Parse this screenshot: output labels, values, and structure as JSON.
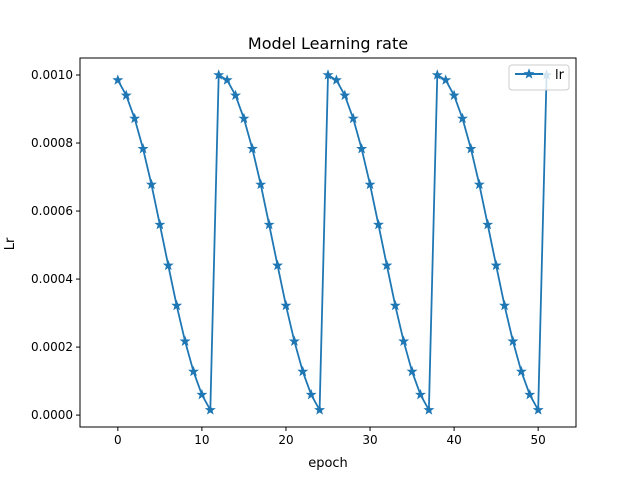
{
  "chart_data": {
    "type": "line",
    "title": "Model Learning rate",
    "xlabel": "epoch",
    "ylabel": "Lr",
    "xlim": [
      -4.5,
      54.5
    ],
    "ylim": [
      -3.5e-05,
      0.00105
    ],
    "x_ticks": [
      0,
      10,
      20,
      30,
      40,
      50
    ],
    "x_tick_labels": [
      "0",
      "10",
      "20",
      "30",
      "40",
      "50"
    ],
    "y_ticks": [
      0.0,
      0.0002,
      0.0004,
      0.0006,
      0.0008,
      0.001
    ],
    "y_tick_labels": [
      "0.0000",
      "0.0002",
      "0.0004",
      "0.0006",
      "0.0008",
      "0.0010"
    ],
    "legend": {
      "position": "top-right",
      "entries": [
        "lr"
      ]
    },
    "grid": false,
    "series": [
      {
        "name": "lr",
        "color": "#1f77b4",
        "marker": "star",
        "x": [
          0,
          1,
          2,
          3,
          4,
          5,
          6,
          7,
          8,
          9,
          10,
          11,
          12,
          13,
          14,
          15,
          16,
          17,
          18,
          19,
          20,
          21,
          22,
          23,
          24,
          25,
          26,
          27,
          28,
          29,
          30,
          31,
          32,
          33,
          34,
          35,
          36,
          37,
          38,
          39,
          40,
          41,
          42,
          43,
          44,
          45,
          46,
          47,
          48,
          49,
          50,
          51
        ],
        "y": [
          0.000985,
          0.00094,
          0.000872,
          0.000783,
          0.000678,
          0.00056,
          0.00044,
          0.000322,
          0.000217,
          0.000128,
          6e-05,
          1.5e-05,
          0.001,
          0.000985,
          0.00094,
          0.000872,
          0.000783,
          0.000678,
          0.00056,
          0.00044,
          0.000322,
          0.000217,
          0.000128,
          6e-05,
          1.5e-05,
          0.001,
          0.000985,
          0.00094,
          0.000872,
          0.000783,
          0.000678,
          0.00056,
          0.00044,
          0.000322,
          0.000217,
          0.000128,
          6e-05,
          1.5e-05,
          0.001,
          0.000985,
          0.00094,
          0.000872,
          0.000783,
          0.000678,
          0.00056,
          0.00044,
          0.000322,
          0.000217,
          0.000128,
          6e-05,
          1.5e-05,
          0.001
        ]
      }
    ]
  }
}
